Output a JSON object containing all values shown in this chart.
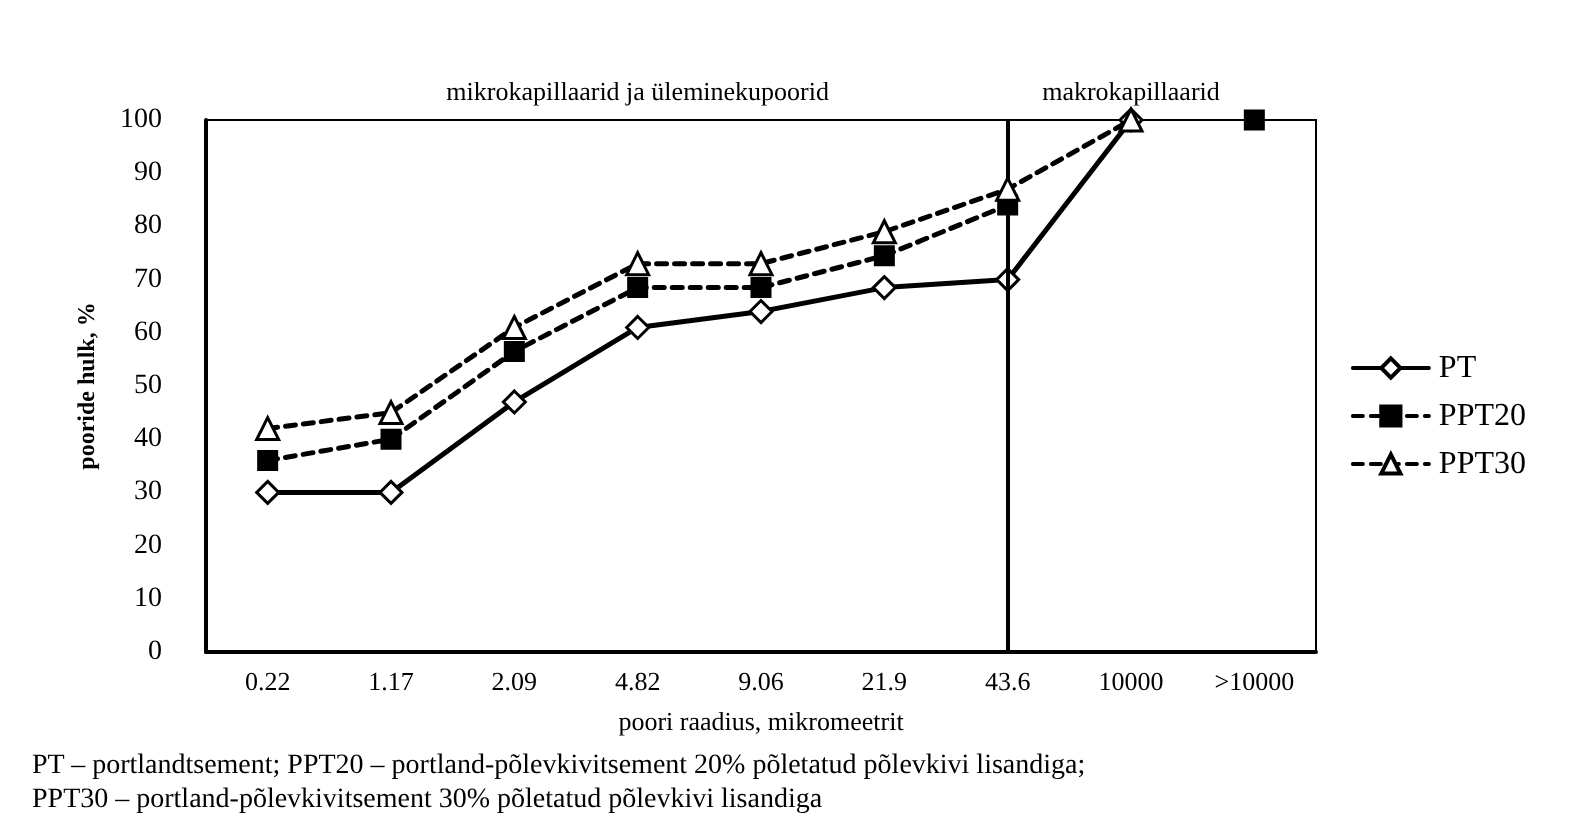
{
  "chart_data": {
    "type": "line",
    "xlabel": "poori raadius, mikromeetrit",
    "ylabel": "pooride hulk, %",
    "categories": [
      "0.22",
      "1.17",
      "2.09",
      "4.82",
      "9.06",
      "21.9",
      "43.6",
      "10000",
      ">10000"
    ],
    "series": [
      {
        "name": "PT",
        "color": "#000000",
        "line_style": "solid",
        "marker": "diamond",
        "values": [
          30,
          30,
          47,
          61,
          64,
          68.5,
          70,
          100,
          null
        ]
      },
      {
        "name": "PPT20",
        "color": "#000000",
        "line_style": "dashed",
        "marker": "square",
        "values": [
          36,
          40,
          56.5,
          68.5,
          68.5,
          74.5,
          84,
          null,
          100
        ]
      },
      {
        "name": "PPT30",
        "color": "#000000",
        "line_style": "dashed",
        "marker": "triangle",
        "values": [
          42,
          45,
          61,
          73,
          73,
          79,
          87,
          100,
          null
        ]
      }
    ],
    "ylim": [
      0,
      100
    ],
    "yticks": [
      0,
      10,
      20,
      30,
      40,
      50,
      60,
      70,
      80,
      90,
      100
    ],
    "grid": false,
    "legend": "right",
    "ref_lines": [
      {
        "axis": "x",
        "value": "43.6",
        "label": null,
        "color": "#000000"
      }
    ],
    "annotations": [
      "mikrokapillaarid ja üleminekupoorid",
      "makrokapillaarid",
      "PT – portlandtsement; PPT20 – portland-põlevkivitsement 20% põletatud põlevkivi lisandiga;",
      "PPT30 – portland-põlevkivitsement 30% põletatud põlevkivi lisandiga"
    ]
  }
}
